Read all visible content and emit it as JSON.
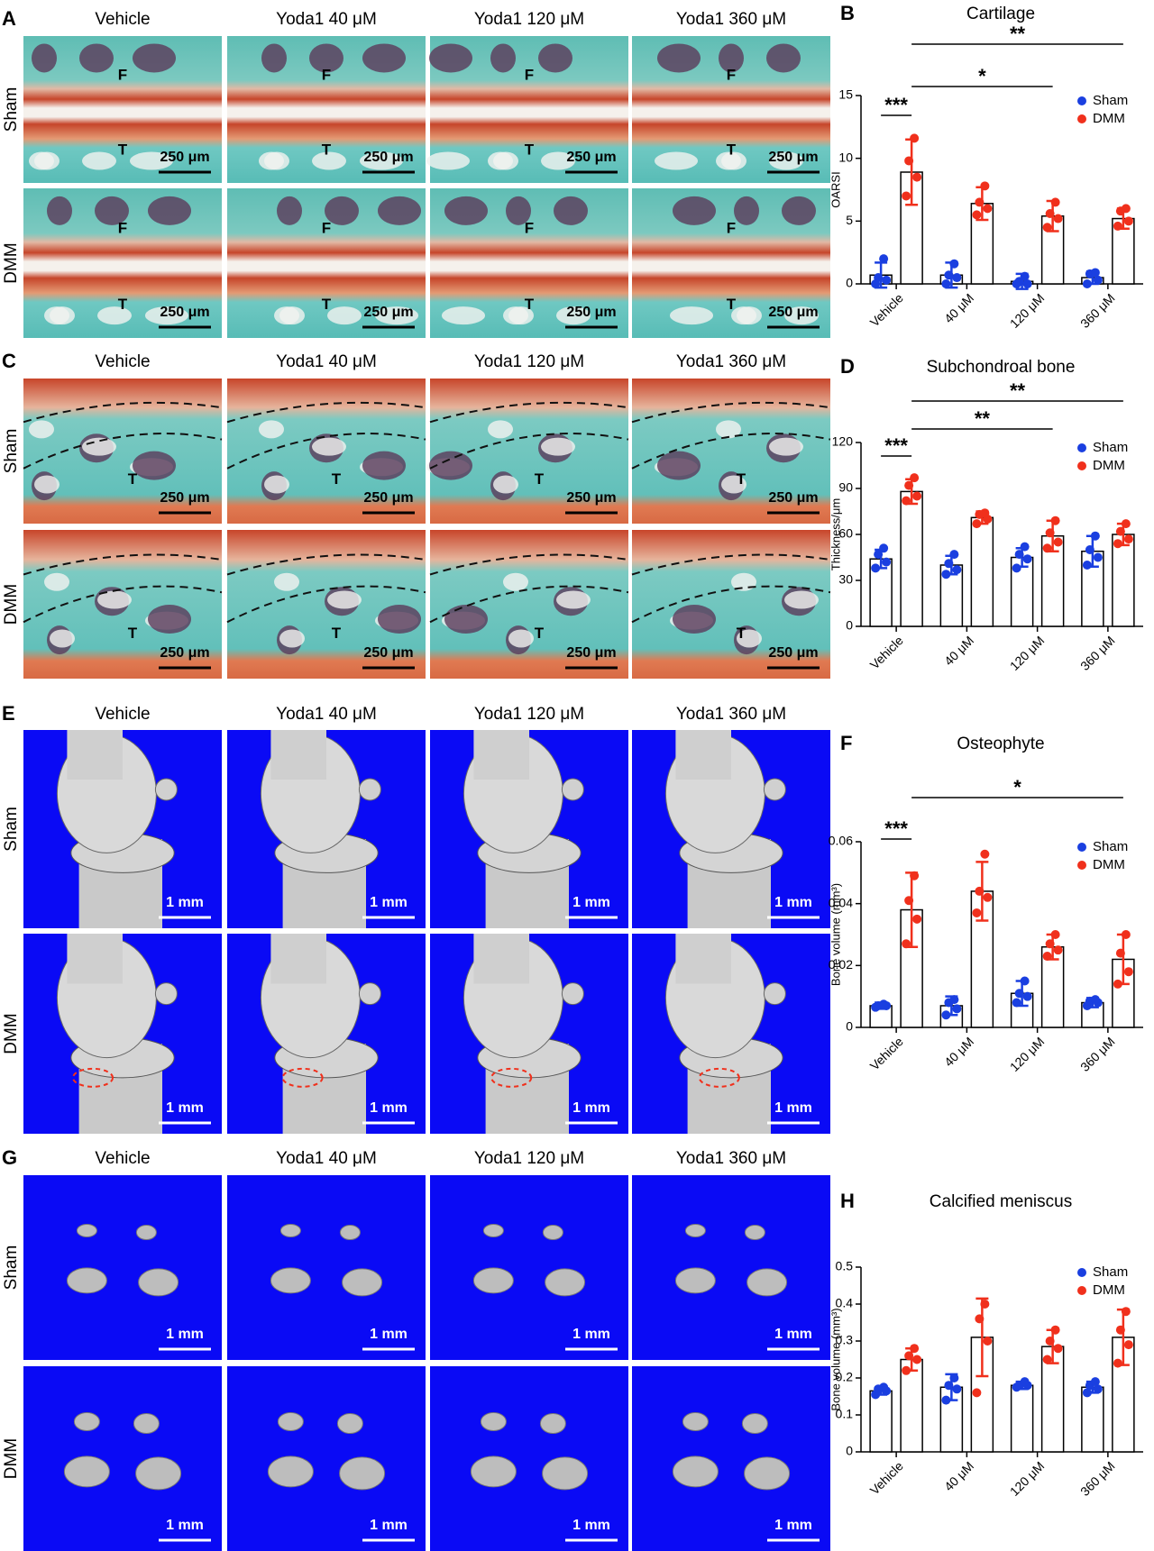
{
  "panels": [
    {
      "letter": "A",
      "columns": [
        "Vehicle",
        "Yoda1 40 μM",
        "Yoda1 120 μM",
        "Yoda1 360 μM"
      ],
      "rows": [
        "Sham",
        "DMM"
      ],
      "tissue_labels": [
        "F",
        "T"
      ],
      "scale_bar": "250 μm"
    },
    {
      "letter": "C",
      "columns": [
        "Vehicle",
        "Yoda1 40 μM",
        "Yoda1 120 μM",
        "Yoda1 360 μM"
      ],
      "rows": [
        "Sham",
        "DMM"
      ],
      "tissue_labels": [
        "T"
      ],
      "scale_bar": "250 μm"
    },
    {
      "letter": "E",
      "columns": [
        "Vehicle",
        "Yoda1 40 μM",
        "Yoda1 120 μM",
        "Yoda1 360 μM"
      ],
      "rows": [
        "Sham",
        "DMM"
      ],
      "scale_bar": "1 mm"
    },
    {
      "letter": "G",
      "columns": [
        "Vehicle",
        "Yoda1 40 μM",
        "Yoda1 120 μM",
        "Yoda1 360 μM"
      ],
      "rows": [
        "Sham",
        "DMM"
      ],
      "scale_bar": "1 mm"
    }
  ],
  "chart_data": [
    {
      "type": "bar",
      "panel": "B",
      "title": "Cartilage",
      "ylabel": "OARSI",
      "categories": [
        "Vehicle",
        "40 μM",
        "120 μM",
        "360 μM"
      ],
      "ylim": [
        0,
        15
      ],
      "yticks": [
        0,
        5,
        10,
        15
      ],
      "annotations": [
        "***",
        "*",
        "**"
      ],
      "series": [
        {
          "name": "Sham",
          "color": "#1a3fe0",
          "values": [
            0.7,
            0.7,
            0.2,
            0.5
          ],
          "errors": [
            1.0,
            1.0,
            0.6,
            0.5
          ],
          "points": [
            [
              0,
              0.3,
              0.5,
              2
            ],
            [
              0,
              0.5,
              0.7,
              1.6
            ],
            [
              0,
              0,
              0.2,
              0.6
            ],
            [
              0,
              0.3,
              0.8,
              0.9
            ]
          ]
        },
        {
          "name": "DMM",
          "color": "#f0301c",
          "values": [
            8.9,
            6.4,
            5.4,
            5.2
          ],
          "errors": [
            2.6,
            1.3,
            1.2,
            0.8
          ],
          "points": [
            [
              7,
              8.5,
              9.8,
              11.6
            ],
            [
              5.5,
              6,
              6.5,
              7.8
            ],
            [
              4.5,
              5.2,
              5.6,
              6.5
            ],
            [
              4.6,
              5,
              5.8,
              6
            ]
          ]
        }
      ]
    },
    {
      "type": "bar",
      "panel": "D",
      "title": "Subchondroal bone",
      "ylabel": "Thickness/μm",
      "categories": [
        "Vehicle",
        "40 μM",
        "120 μM",
        "360 μM"
      ],
      "ylim": [
        0,
        120
      ],
      "yticks": [
        0,
        30,
        60,
        90,
        120
      ],
      "annotations": [
        "***",
        "**",
        "**"
      ],
      "series": [
        {
          "name": "Sham",
          "color": "#1a3fe0",
          "values": [
            44,
            40,
            45,
            49
          ],
          "errors": [
            6,
            6,
            6,
            10
          ],
          "points": [
            [
              38,
              42,
              47,
              51
            ],
            [
              34,
              37,
              41,
              47
            ],
            [
              38,
              44,
              47,
              52
            ],
            [
              40,
              45,
              50,
              59
            ]
          ]
        },
        {
          "name": "DMM",
          "color": "#f0301c",
          "values": [
            88,
            71,
            59,
            60
          ],
          "errors": [
            8,
            4,
            10,
            7
          ],
          "points": [
            [
              82,
              85,
              92,
              97
            ],
            [
              67,
              70,
              73,
              74
            ],
            [
              51,
              55,
              61,
              69
            ],
            [
              54,
              57,
              62,
              67
            ]
          ]
        }
      ]
    },
    {
      "type": "bar",
      "panel": "F",
      "title": "Osteophyte",
      "ylabel": "Bone volume (mm³)",
      "categories": [
        "Vehicle",
        "40 μM",
        "120 μM",
        "360 μM"
      ],
      "ylim": [
        0,
        0.06
      ],
      "yticks": [
        0,
        0.02,
        0.04,
        0.06
      ],
      "annotations": [
        "***",
        "*"
      ],
      "series": [
        {
          "name": "Sham",
          "color": "#1a3fe0",
          "values": [
            0.007,
            0.007,
            0.011,
            0.008
          ],
          "errors": [
            0.001,
            0.003,
            0.004,
            0.0015
          ],
          "points": [
            [
              0.0065,
              0.007,
              0.007,
              0.0075
            ],
            [
              0.004,
              0.006,
              0.008,
              0.009
            ],
            [
              0.008,
              0.01,
              0.011,
              0.015
            ],
            [
              0.007,
              0.008,
              0.0085,
              0.009
            ]
          ]
        },
        {
          "name": "DMM",
          "color": "#f0301c",
          "values": [
            0.038,
            0.044,
            0.026,
            0.022
          ],
          "errors": [
            0.012,
            0.0095,
            0.004,
            0.008
          ],
          "points": [
            [
              0.027,
              0.035,
              0.041,
              0.049
            ],
            [
              0.037,
              0.042,
              0.044,
              0.056
            ],
            [
              0.023,
              0.025,
              0.027,
              0.03
            ],
            [
              0.014,
              0.018,
              0.024,
              0.03
            ]
          ]
        }
      ]
    },
    {
      "type": "bar",
      "panel": "H",
      "title": "Calcified meniscus",
      "ylabel": "Bone volume (mm³)",
      "categories": [
        "Vehicle",
        "40 μM",
        "120 μM",
        "360 μM"
      ],
      "ylim": [
        0,
        0.5
      ],
      "yticks": [
        0,
        0.1,
        0.2,
        0.3,
        0.4,
        0.5
      ],
      "series": [
        {
          "name": "Sham",
          "color": "#1a3fe0",
          "values": [
            0.165,
            0.175,
            0.18,
            0.175
          ],
          "errors": [
            0.01,
            0.035,
            0.01,
            0.015
          ],
          "points": [
            [
              0.155,
              0.165,
              0.17,
              0.175
            ],
            [
              0.14,
              0.17,
              0.18,
              0.2
            ],
            [
              0.175,
              0.18,
              0.18,
              0.19
            ],
            [
              0.16,
              0.17,
              0.18,
              0.19
            ]
          ]
        },
        {
          "name": "DMM",
          "color": "#f0301c",
          "values": [
            0.25,
            0.31,
            0.285,
            0.31
          ],
          "errors": [
            0.03,
            0.105,
            0.045,
            0.075
          ],
          "points": [
            [
              0.22,
              0.25,
              0.26,
              0.28
            ],
            [
              0.16,
              0.3,
              0.36,
              0.4
            ],
            [
              0.25,
              0.28,
              0.3,
              0.33
            ],
            [
              0.24,
              0.29,
              0.33,
              0.38
            ]
          ]
        }
      ]
    }
  ]
}
